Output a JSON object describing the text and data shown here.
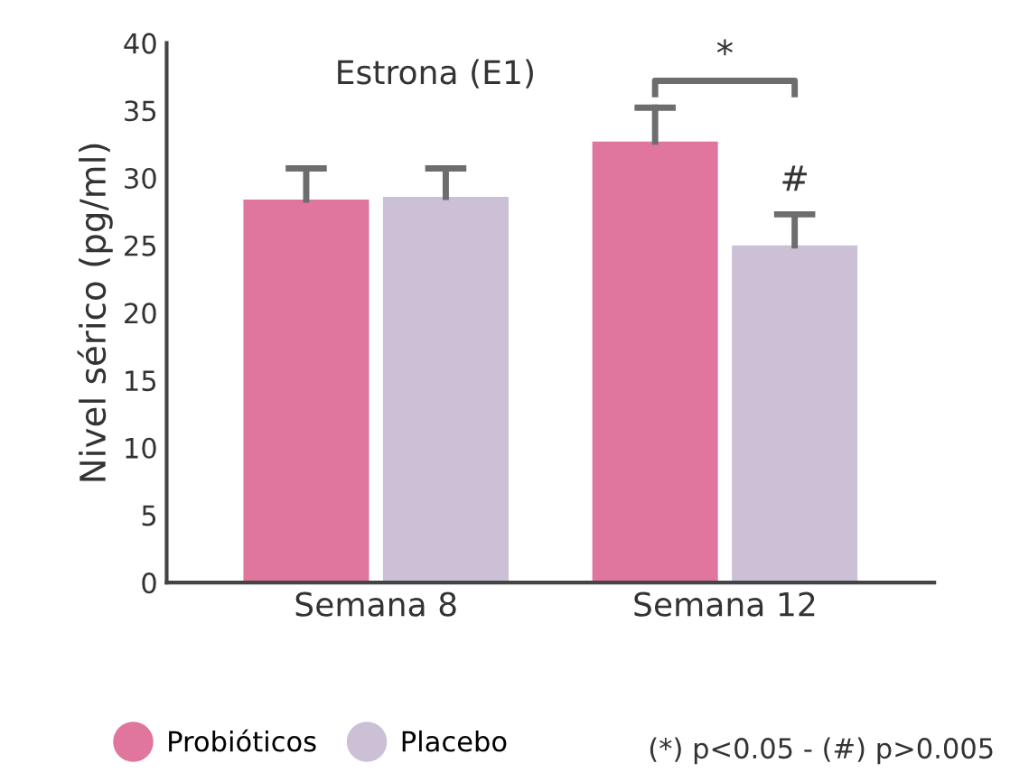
{
  "chart_data": {
    "type": "bar",
    "title": "Estrona (E1)",
    "ylabel": "Nivel sérico (pg/ml)",
    "categories": [
      "Semana 8",
      "Semana 12"
    ],
    "series": [
      {
        "name": "Probióticos",
        "color": "#e0759d",
        "values": [
          28.4,
          32.7
        ],
        "errors": [
          [
            28.4,
            30.7
          ],
          [
            32.7,
            35.2
          ]
        ]
      },
      {
        "name": "Placebo",
        "color": "#cbc0d6",
        "values": [
          28.6,
          25.0
        ],
        "errors": [
          [
            28.6,
            30.7
          ],
          [
            25.0,
            27.3
          ]
        ]
      }
    ],
    "ylim": [
      0,
      40
    ],
    "yticks": [
      0,
      5,
      10,
      15,
      20,
      25,
      30,
      35,
      40
    ],
    "grid": false,
    "legend": "bottom",
    "annotations": [
      "*",
      "#",
      "(*) p<0.05 - (#) p>0.005"
    ]
  }
}
